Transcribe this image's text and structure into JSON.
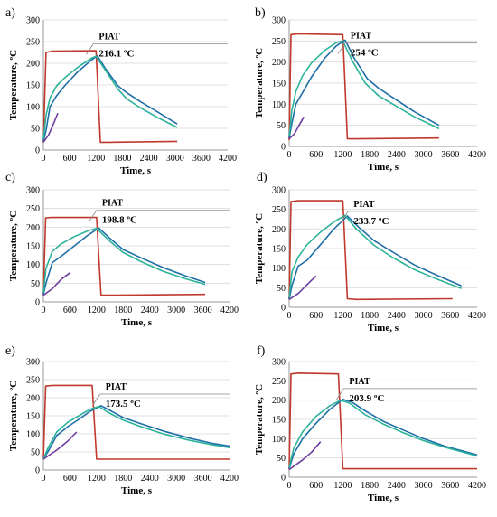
{
  "colors": {
    "heater": "#c0392b",
    "s1": "#1f6fa8",
    "s2": "#2bb39a",
    "s3": "#6b3fa0",
    "axis": "#999999",
    "grid": "#d9d9d9"
  },
  "chart_data": [
    {
      "panel": "a)",
      "type": "line",
      "xlabel": "Time, s",
      "ylabel": "Temperature, ºC",
      "xlim": [
        0,
        4200
      ],
      "ylim": [
        0,
        300
      ],
      "xticks": [
        "0",
        "600",
        "1200",
        "1800",
        "2400",
        "3000",
        "3600",
        "4200"
      ],
      "yticks": [
        "0",
        "50",
        "100",
        "150",
        "200",
        "250",
        "300"
      ],
      "grid": "horizontal",
      "annotation": {
        "label": "PIAT",
        "value": "216.1 ºC",
        "x": 1140,
        "y": 245
      },
      "series": [
        {
          "color_key": "heater",
          "x": [
            0,
            60,
            200,
            1200,
            1300,
            1500,
            3050
          ],
          "y": [
            18,
            225,
            228,
            229,
            18,
            18,
            20
          ]
        },
        {
          "color_key": "s1",
          "x": [
            0,
            60,
            150,
            300,
            500,
            800,
            1100,
            1230,
            1400,
            1700,
            1900,
            2200,
            2600,
            3050
          ],
          "y": [
            20,
            45,
            100,
            125,
            150,
            182,
            208,
            217,
            190,
            148,
            132,
            112,
            88,
            60
          ]
        },
        {
          "color_key": "s2",
          "x": [
            0,
            60,
            150,
            300,
            500,
            800,
            1100,
            1200,
            1400,
            1700,
            1900,
            2200,
            2600,
            3050
          ],
          "y": [
            25,
            80,
            120,
            148,
            168,
            192,
            212,
            216,
            186,
            140,
            118,
            98,
            75,
            52
          ]
        },
        {
          "color_key": "s3",
          "x": [
            0,
            120,
            220,
            330
          ],
          "y": [
            18,
            35,
            58,
            85
          ]
        }
      ]
    },
    {
      "panel": "b)",
      "type": "line",
      "xlabel": "Time, s",
      "ylabel": "Temperature, ºC",
      "xlim": [
        0,
        4200
      ],
      "ylim": [
        0,
        300
      ],
      "xticks": [
        "0",
        "600",
        "1200",
        "1800",
        "2400",
        "3000",
        "3600",
        "4200"
      ],
      "yticks": [
        "0",
        "50",
        "100",
        "150",
        "200",
        "250",
        "300"
      ],
      "grid": "horizontal",
      "annotation": {
        "label": "PIAT",
        "value": "254 ºC",
        "x": 1250,
        "y": 245
      },
      "series": [
        {
          "color_key": "heater",
          "x": [
            0,
            40,
            200,
            1200,
            1300,
            1500,
            3350
          ],
          "y": [
            15,
            265,
            267,
            265,
            18,
            18,
            20
          ]
        },
        {
          "color_key": "s1",
          "x": [
            0,
            60,
            150,
            300,
            500,
            800,
            1050,
            1250,
            1450,
            1750,
            2000,
            2400,
            2800,
            3350
          ],
          "y": [
            20,
            55,
            100,
            128,
            165,
            210,
            238,
            252,
            210,
            160,
            138,
            110,
            82,
            50
          ]
        },
        {
          "color_key": "s2",
          "x": [
            0,
            60,
            150,
            300,
            500,
            800,
            1050,
            1200,
            1400,
            1700,
            2000,
            2400,
            2800,
            3350
          ],
          "y": [
            25,
            85,
            130,
            168,
            198,
            228,
            246,
            250,
            205,
            150,
            120,
            95,
            70,
            42
          ]
        },
        {
          "color_key": "s3",
          "x": [
            0,
            120,
            220,
            330
          ],
          "y": [
            18,
            30,
            50,
            70
          ]
        }
      ]
    },
    {
      "panel": "c)",
      "type": "line",
      "xlabel": "Time, s",
      "ylabel": "Temperature, ºC",
      "xlim": [
        0,
        4200
      ],
      "ylim": [
        0,
        300
      ],
      "xticks": [
        "0",
        "600",
        "1200",
        "1800",
        "2400",
        "3000",
        "3600",
        "4200"
      ],
      "yticks": [
        "0",
        "50",
        "100",
        "150",
        "200",
        "250",
        "300"
      ],
      "grid": "horizontal",
      "annotation": {
        "label": "PIAT",
        "value": "198.8 ºC",
        "x": 1200,
        "y": 245
      },
      "series": [
        {
          "color_key": "heater",
          "x": [
            0,
            50,
            200,
            1200,
            1300,
            1500,
            3650
          ],
          "y": [
            18,
            225,
            226,
            226,
            18,
            18,
            20
          ]
        },
        {
          "color_key": "s1",
          "x": [
            0,
            60,
            200,
            400,
            700,
            1000,
            1250,
            1500,
            1800,
            2200,
            2700,
            3200,
            3650
          ],
          "y": [
            20,
            50,
            105,
            122,
            150,
            178,
            198,
            170,
            140,
            118,
            92,
            70,
            52
          ]
        },
        {
          "color_key": "s2",
          "x": [
            0,
            60,
            200,
            400,
            700,
            1000,
            1200,
            1450,
            1800,
            2200,
            2700,
            3200,
            3650
          ],
          "y": [
            25,
            90,
            135,
            155,
            175,
            190,
            197,
            168,
            132,
            108,
            82,
            62,
            47
          ]
        },
        {
          "color_key": "s3",
          "x": [
            0,
            200,
            400,
            600
          ],
          "y": [
            18,
            35,
            60,
            78
          ]
        }
      ]
    },
    {
      "panel": "d)",
      "type": "line",
      "xlabel": "Time, s",
      "ylabel": "Temperature, ºC",
      "xlim": [
        0,
        4200
      ],
      "ylim": [
        0,
        300
      ],
      "xticks": [
        "0",
        "600",
        "1200",
        "1800",
        "2400",
        "3000",
        "3600",
        "4200"
      ],
      "yticks": [
        "0",
        "50",
        "100",
        "150",
        "200",
        "250",
        "300"
      ],
      "grid": "horizontal",
      "annotation": {
        "label": "PIAT",
        "value": "233.7 ºC",
        "x": 1320,
        "y": 245
      },
      "series": [
        {
          "color_key": "heater",
          "x": [
            0,
            40,
            200,
            1200,
            1300,
            1500,
            3650
          ],
          "y": [
            20,
            270,
            272,
            272,
            22,
            20,
            22
          ]
        },
        {
          "color_key": "s1",
          "x": [
            0,
            60,
            200,
            400,
            700,
            1000,
            1300,
            1550,
            1900,
            2300,
            2800,
            3300,
            3850
          ],
          "y": [
            20,
            55,
            105,
            120,
            160,
            200,
            233,
            205,
            170,
            142,
            108,
            82,
            55
          ]
        },
        {
          "color_key": "s2",
          "x": [
            0,
            60,
            200,
            400,
            700,
            1000,
            1250,
            1500,
            1900,
            2300,
            2800,
            3300,
            3850
          ],
          "y": [
            25,
            90,
            128,
            160,
            192,
            218,
            235,
            200,
            158,
            128,
            96,
            72,
            48
          ]
        },
        {
          "color_key": "s3",
          "x": [
            0,
            200,
            400,
            600
          ],
          "y": [
            20,
            35,
            58,
            80
          ]
        }
      ]
    },
    {
      "panel": "e)",
      "type": "line",
      "xlabel": "Time, s",
      "ylabel": "Temperature, ºC",
      "xlim": [
        0,
        4200
      ],
      "ylim": [
        0,
        300
      ],
      "xticks": [
        "0",
        "600",
        "1200",
        "1800",
        "2400",
        "3000",
        "3600",
        "4200"
      ],
      "yticks": [
        "0",
        "50",
        "100",
        "150",
        "200",
        "250",
        "300"
      ],
      "grid": "horizontal",
      "annotation": {
        "label": "PIAT",
        "value": "173.5 ºC",
        "x": 1280,
        "y": 210
      },
      "series": [
        {
          "color_key": "heater",
          "x": [
            0,
            50,
            200,
            1100,
            1200,
            1400,
            4200
          ],
          "y": [
            30,
            232,
            234,
            234,
            30,
            30,
            30
          ]
        },
        {
          "color_key": "s1",
          "x": [
            0,
            100,
            300,
            550,
            800,
            1050,
            1300,
            1500,
            1800,
            2200,
            2700,
            3300,
            3800,
            4200
          ],
          "y": [
            30,
            50,
            95,
            120,
            140,
            162,
            178,
            165,
            145,
            128,
            108,
            88,
            74,
            66
          ]
        },
        {
          "color_key": "s2",
          "x": [
            0,
            100,
            300,
            550,
            800,
            1050,
            1250,
            1450,
            1800,
            2200,
            2700,
            3300,
            3800,
            4200
          ],
          "y": [
            30,
            60,
            105,
            132,
            150,
            168,
            176,
            160,
            138,
            120,
            100,
            82,
            70,
            62
          ]
        },
        {
          "color_key": "s3",
          "x": [
            0,
            300,
            550,
            750
          ],
          "y": [
            30,
            55,
            80,
            105
          ]
        }
      ]
    },
    {
      "panel": "f)",
      "type": "line",
      "xlabel": "Time, s",
      "ylabel": "Temperature, ºC",
      "xlim": [
        0,
        4200
      ],
      "ylim": [
        0,
        300
      ],
      "xticks": [
        "0",
        "600",
        "1200",
        "1800",
        "2400",
        "3000",
        "3600",
        "4200"
      ],
      "yticks": [
        "0",
        "50",
        "100",
        "150",
        "200",
        "250",
        "300"
      ],
      "grid": "horizontal",
      "annotation": {
        "label": "PIAT",
        "value": "203.9 ºC",
        "x": 1220,
        "y": 230
      },
      "series": [
        {
          "color_key": "heater",
          "x": [
            0,
            40,
            200,
            1100,
            1200,
            1400,
            4200
          ],
          "y": [
            20,
            268,
            270,
            268,
            22,
            22,
            22
          ]
        },
        {
          "color_key": "s1",
          "x": [
            0,
            100,
            300,
            600,
            900,
            1200,
            1400,
            1700,
            2100,
            2500,
            3000,
            3500,
            4200
          ],
          "y": [
            22,
            60,
            100,
            140,
            175,
            202,
            195,
            172,
            145,
            125,
            100,
            80,
            58
          ]
        },
        {
          "color_key": "s2",
          "x": [
            0,
            100,
            300,
            600,
            900,
            1150,
            1350,
            1700,
            2100,
            2500,
            3000,
            3500,
            4200
          ],
          "y": [
            25,
            75,
            118,
            158,
            185,
            200,
            192,
            162,
            138,
            118,
            95,
            77,
            55
          ]
        },
        {
          "color_key": "s3",
          "x": [
            0,
            300,
            500,
            700
          ],
          "y": [
            20,
            45,
            65,
            92
          ]
        }
      ]
    }
  ]
}
